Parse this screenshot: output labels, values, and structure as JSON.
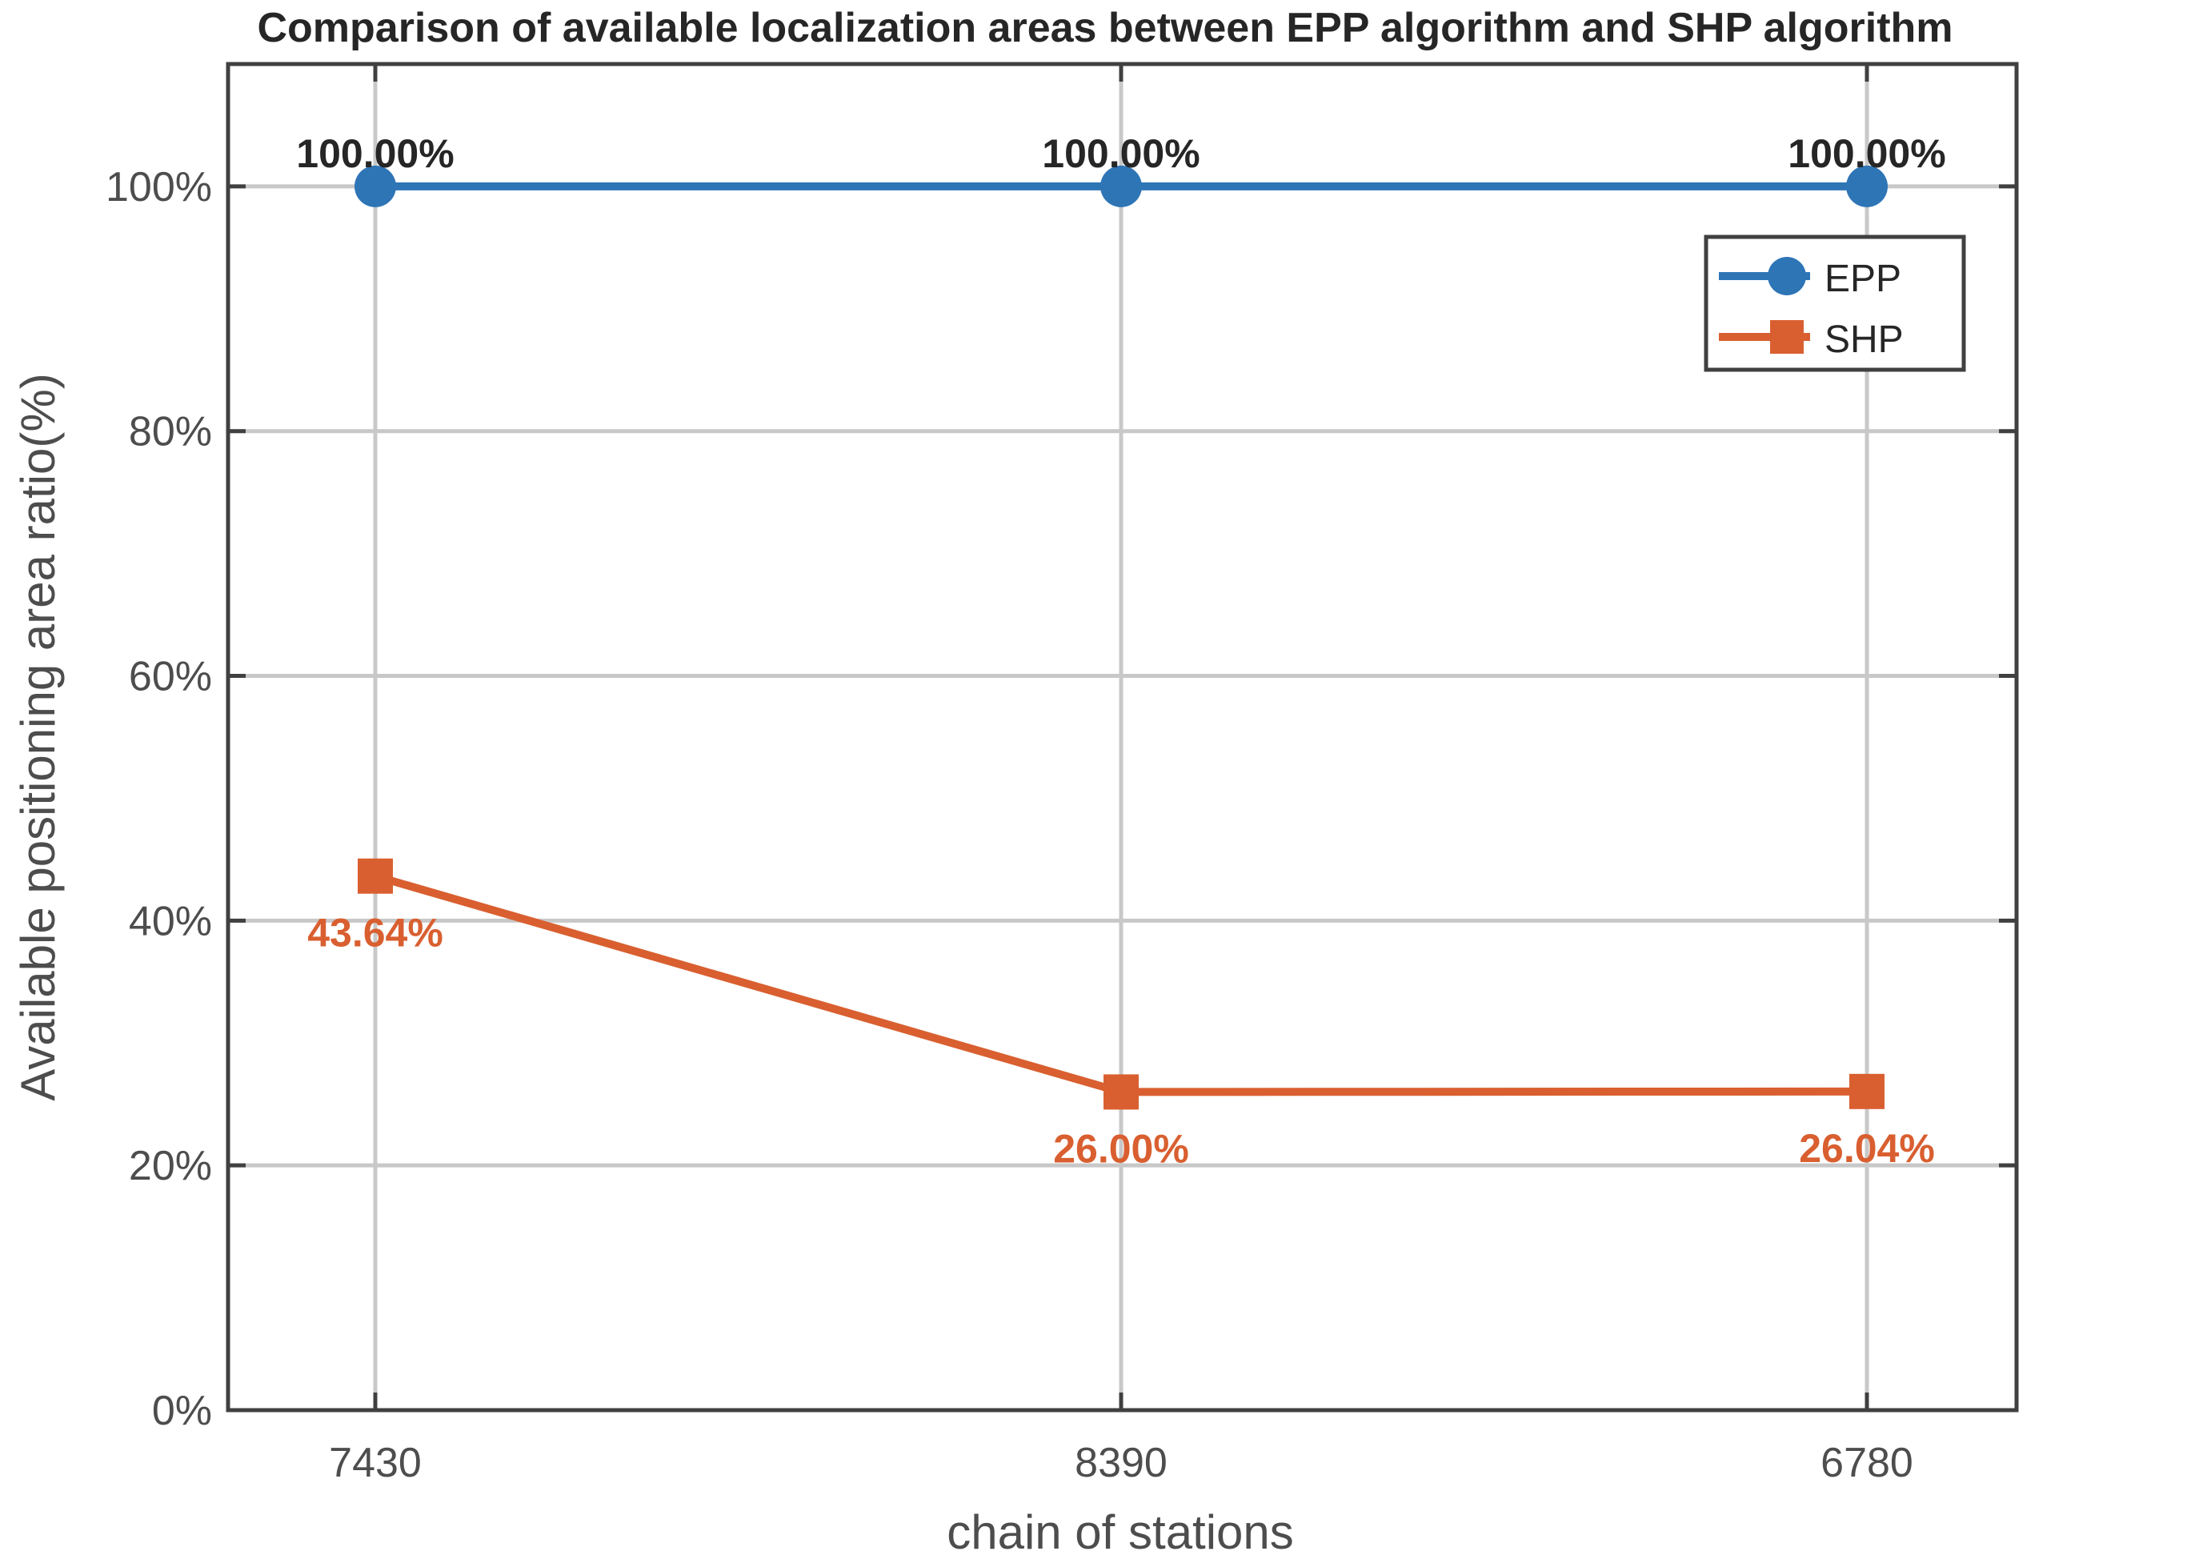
{
  "chart_data": {
    "type": "line",
    "title": "Comparison of available localization areas between EPP algorithm and SHP algorithm",
    "xlabel": "chain of stations",
    "ylabel": "Available positioning area ratio(%)",
    "categories": [
      "7430",
      "8390",
      "6780"
    ],
    "ylim": [
      0,
      110
    ],
    "yticks": [
      0,
      20,
      40,
      60,
      80,
      100
    ],
    "ytick_labels": [
      "0%",
      "20%",
      "40%",
      "60%",
      "80%",
      "100%"
    ],
    "grid": true,
    "legend_position": "top-right",
    "series": [
      {
        "name": "EPP",
        "marker": "circle",
        "color": "#2e75b6",
        "label_color": "#262626",
        "values": [
          100.0,
          100.0,
          100.0
        ],
        "data_labels": [
          "100.00%",
          "100.00%",
          "100.00%"
        ],
        "label_position": "above"
      },
      {
        "name": "SHP",
        "marker": "square",
        "color": "#d95f30",
        "label_color": "#d95f30",
        "values": [
          43.64,
          26.0,
          26.04
        ],
        "data_labels": [
          "43.64%",
          "26.00%",
          "26.04%"
        ],
        "label_position": "below"
      }
    ]
  }
}
